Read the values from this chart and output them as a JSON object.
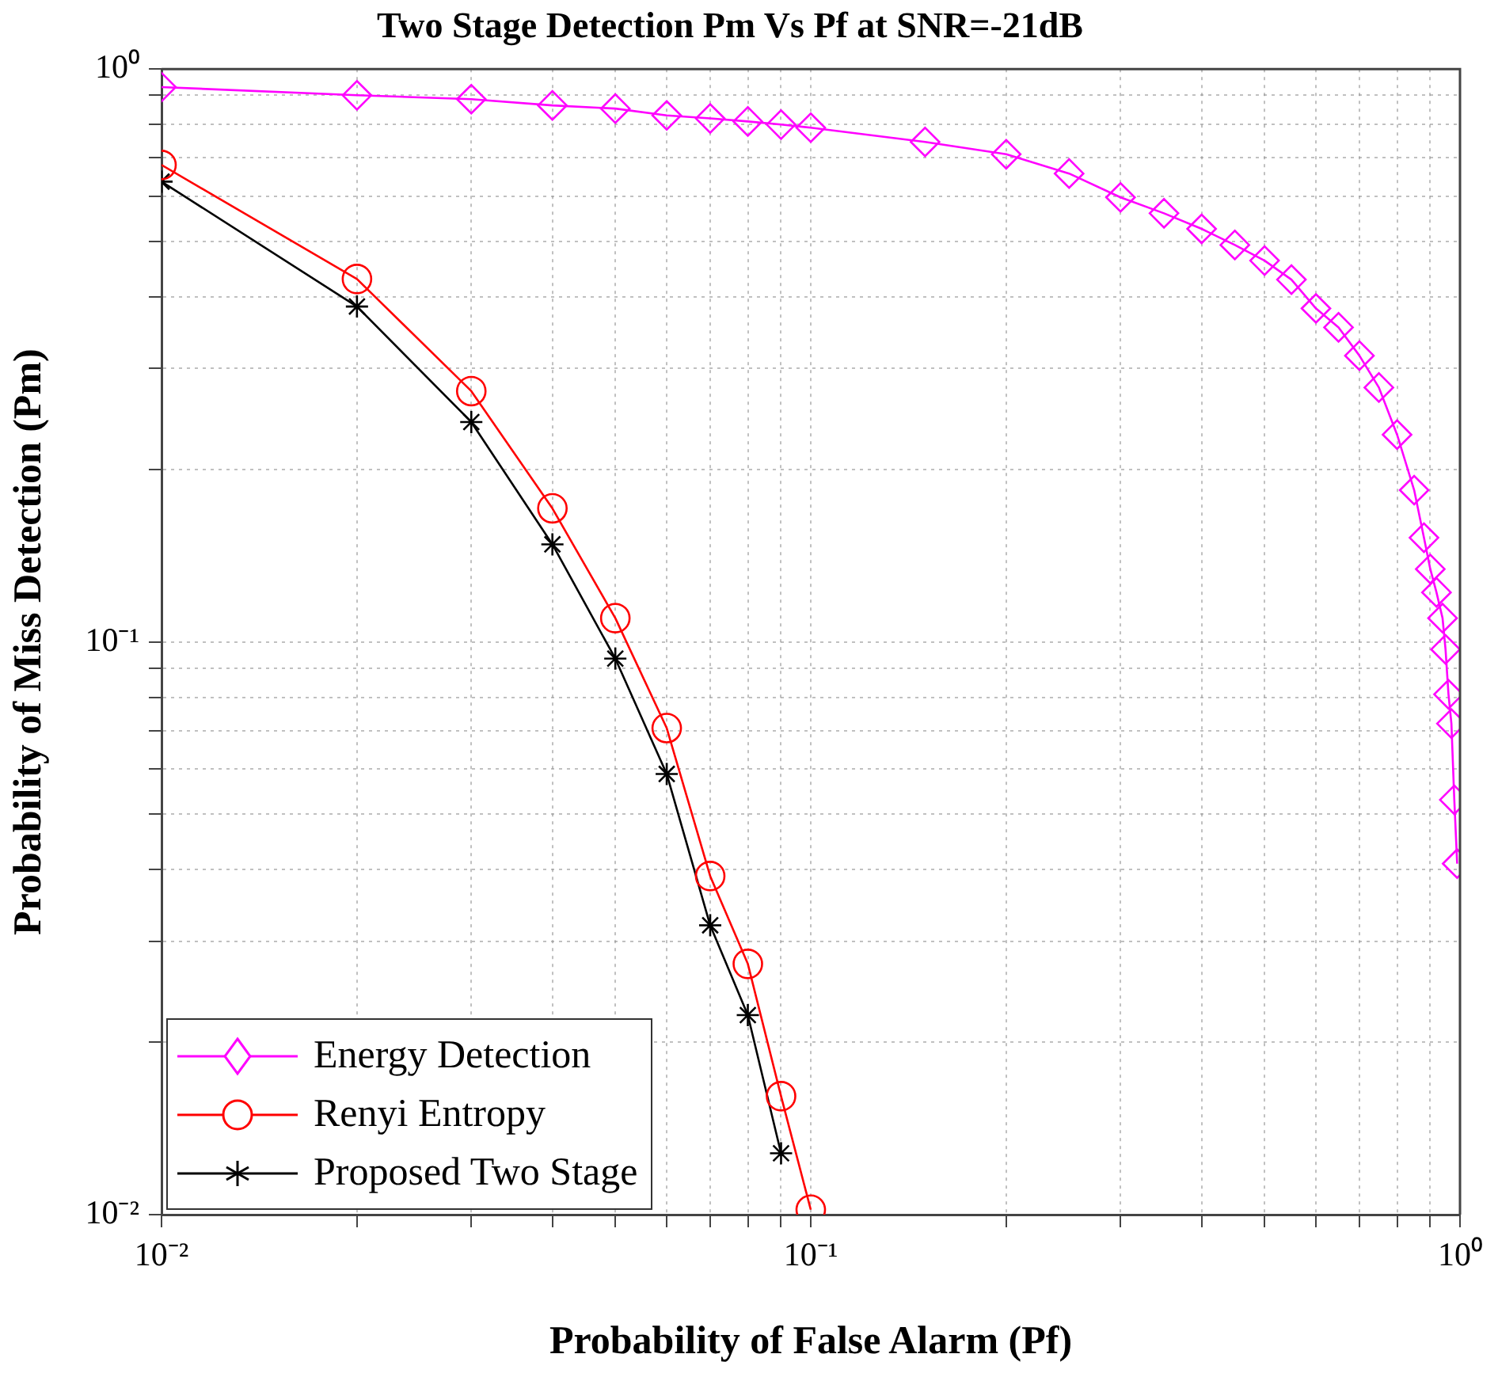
{
  "chart_data": {
    "type": "line",
    "title": "Two Stage Detection Pm Vs Pf at SNR=-21dB",
    "xlabel": "Probability of False Alarm (Pf)",
    "ylabel": "Probability of Miss Detection (Pm)",
    "log": "xy",
    "grid": true,
    "legend": "bottom left",
    "line_style": "solid",
    "xlim": [
      0.01,
      1
    ],
    "ylim": [
      0.01,
      1
    ],
    "xticks": [
      {
        "value": 0.01,
        "label": "10⁻²"
      },
      {
        "value": 0.02,
        "label": null
      },
      {
        "value": 0.03,
        "label": null
      },
      {
        "value": 0.04,
        "label": null
      },
      {
        "value": 0.05,
        "label": null
      },
      {
        "value": 0.06,
        "label": null
      },
      {
        "value": 0.07,
        "label": null
      },
      {
        "value": 0.08,
        "label": null
      },
      {
        "value": 0.09,
        "label": null
      },
      {
        "value": 0.1,
        "label": "10⁻¹"
      },
      {
        "value": 0.2,
        "label": null
      },
      {
        "value": 0.3,
        "label": null
      },
      {
        "value": 0.4,
        "label": null
      },
      {
        "value": 0.5,
        "label": null
      },
      {
        "value": 0.6,
        "label": null
      },
      {
        "value": 0.7,
        "label": null
      },
      {
        "value": 0.8,
        "label": null
      },
      {
        "value": 0.9,
        "label": null
      },
      {
        "value": 1,
        "label": "10⁰"
      }
    ],
    "yticks": [
      {
        "value": 0.01,
        "label": "10⁻²"
      },
      {
        "value": 0.02,
        "label": null
      },
      {
        "value": 0.03,
        "label": null
      },
      {
        "value": 0.04,
        "label": null
      },
      {
        "value": 0.05,
        "label": null
      },
      {
        "value": 0.06,
        "label": null
      },
      {
        "value": 0.07,
        "label": null
      },
      {
        "value": 0.08,
        "label": null
      },
      {
        "value": 0.09,
        "label": null
      },
      {
        "value": 0.1,
        "label": "10⁻¹"
      },
      {
        "value": 0.2,
        "label": null
      },
      {
        "value": 0.3,
        "label": null
      },
      {
        "value": 0.4,
        "label": null
      },
      {
        "value": 0.5,
        "label": null
      },
      {
        "value": 0.6,
        "label": null
      },
      {
        "value": 0.7,
        "label": null
      },
      {
        "value": 0.8,
        "label": null
      },
      {
        "value": 0.9,
        "label": null
      },
      {
        "value": 1,
        "label": "10⁰"
      }
    ],
    "series": [
      {
        "name": "Energy Detection",
        "color": "#ff00ff",
        "marker": "diamond",
        "x": [
          0.01,
          0.02,
          0.03,
          0.04,
          0.05,
          0.06,
          0.07,
          0.08,
          0.09,
          0.1,
          0.15,
          0.2,
          0.25,
          0.3,
          0.35,
          0.4,
          0.45,
          0.5,
          0.55,
          0.6,
          0.65,
          0.7,
          0.75,
          0.8,
          0.85,
          0.88,
          0.9,
          0.92,
          0.94,
          0.95,
          0.96,
          0.97,
          0.98,
          0.99
        ],
        "values": [
          0.93,
          0.9,
          0.886,
          0.864,
          0.853,
          0.83,
          0.82,
          0.81,
          0.8,
          0.79,
          0.746,
          0.71,
          0.657,
          0.597,
          0.56,
          0.526,
          0.493,
          0.463,
          0.429,
          0.382,
          0.354,
          0.316,
          0.278,
          0.23,
          0.184,
          0.152,
          0.134,
          0.122,
          0.11,
          0.097,
          0.081,
          0.072,
          0.053,
          0.041
        ]
      },
      {
        "name": "Renyi Entropy",
        "color": "#ff0000",
        "marker": "circle",
        "x": [
          0.01,
          0.02,
          0.03,
          0.04,
          0.05,
          0.06,
          0.07,
          0.08,
          0.09,
          0.1
        ],
        "values": [
          0.68,
          0.43,
          0.274,
          0.171,
          0.11,
          0.0707,
          0.039,
          0.0274,
          0.0161,
          0.0102
        ]
      },
      {
        "name": "Proposed Two Stage",
        "color": "#000000",
        "marker": "cross",
        "x": [
          0.01,
          0.02,
          0.03,
          0.04,
          0.05,
          0.06,
          0.07,
          0.08,
          0.09
        ],
        "values": [
          0.636,
          0.385,
          0.242,
          0.148,
          0.0935,
          0.0588,
          0.032,
          0.0223,
          0.0128
        ]
      }
    ]
  }
}
